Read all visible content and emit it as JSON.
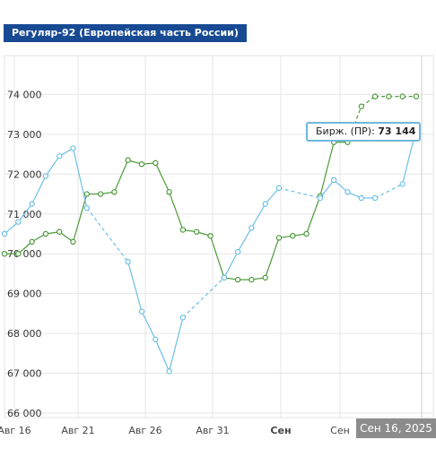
{
  "title": "Регуляр-92 (Европейская часть России)",
  "tooltip": {
    "label": "Бирж. (ПР):",
    "value": "73 144"
  },
  "crosshair_label": "Сен 16, 2025",
  "colors": {
    "title_bg": "#184a94",
    "green": "#4c9a3a",
    "blue": "#6cc0e5",
    "tooltip_border": "#6fb7dd",
    "grid": "#e6e6e6",
    "badge_bg": "#8c8c8c"
  },
  "chart_data": {
    "type": "line",
    "yticks": [
      "74 000",
      "73 000",
      "72 000",
      "71 000",
      "70 000",
      "69 000",
      "68 000",
      "67 000",
      "66 000"
    ],
    "xticks": [
      {
        "label": "Авг 16",
        "bold": false
      },
      {
        "label": "Авг 21",
        "bold": false
      },
      {
        "label": "Авг 26",
        "bold": false
      },
      {
        "label": "Авг 31",
        "bold": false
      },
      {
        "label": "Сен",
        "bold": true
      },
      {
        "label": "Сен",
        "bold": false
      }
    ],
    "ylim": [
      66000,
      74800
    ],
    "series": [
      {
        "color": "#4c9a3a",
        "points": [
          [
            0,
            70000
          ],
          [
            1,
            70000
          ],
          [
            2,
            70300
          ],
          [
            3,
            70500
          ],
          [
            4,
            70550
          ],
          [
            5,
            70300
          ],
          [
            6,
            71500
          ],
          [
            7,
            71500
          ],
          [
            8,
            71550
          ],
          [
            9,
            72350
          ],
          [
            10,
            72250
          ],
          [
            11,
            72280
          ],
          [
            12,
            71550
          ],
          [
            13,
            70600
          ],
          [
            14,
            70550
          ],
          [
            15,
            70450
          ],
          [
            16,
            69400
          ],
          [
            17,
            69350
          ],
          [
            18,
            69350
          ],
          [
            19,
            69400
          ],
          [
            20,
            70400
          ],
          [
            21,
            70450
          ],
          [
            22,
            70500
          ],
          [
            23,
            71450
          ],
          [
            24,
            72800
          ],
          [
            25,
            72800
          ],
          [
            26,
            73700
          ],
          [
            27,
            73950
          ],
          [
            28,
            73950
          ],
          [
            29,
            73950
          ],
          [
            30,
            73950
          ]
        ],
        "dashed_after": 25
      },
      {
        "color": "#6cc0e5",
        "points": [
          [
            0,
            70500
          ],
          [
            1,
            70800
          ],
          [
            2,
            71250
          ],
          [
            3,
            71950
          ],
          [
            4,
            72450
          ],
          [
            5,
            72650
          ],
          [
            6,
            71150
          ],
          [
            9,
            69800
          ],
          [
            10,
            68550
          ],
          [
            11,
            67850
          ],
          [
            12,
            67050
          ],
          [
            13,
            68400
          ],
          [
            16,
            69400
          ],
          [
            17,
            70050
          ],
          [
            18,
            70650
          ],
          [
            19,
            71250
          ],
          [
            20,
            71650
          ],
          [
            23,
            71400
          ],
          [
            24,
            71850
          ],
          [
            25,
            71550
          ],
          [
            26,
            71400
          ],
          [
            27,
            71400
          ],
          [
            29,
            71750
          ],
          [
            30,
            73144
          ]
        ],
        "dashed_segments": [
          [
            6,
            9
          ],
          [
            13,
            16
          ],
          [
            20,
            23
          ],
          [
            27,
            29
          ]
        ]
      }
    ]
  }
}
